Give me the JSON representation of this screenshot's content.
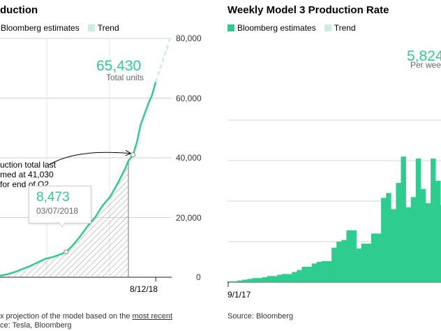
{
  "left_chart": {
    "title": "duction",
    "legend": {
      "estimates_label": "Bloomberg estimates",
      "trend_label": "Trend"
    },
    "highlight": {
      "value": "65,430",
      "caption": "Total units"
    },
    "annotation": {
      "lines": [
        "uction total last",
        "med at 41,030",
        "for end of Q2"
      ]
    },
    "tooltip": {
      "value": "8,473",
      "date": "03/07/2018"
    },
    "footnote": {
      "prefix": "x projection of the model based on the ",
      "link": "most recent"
    },
    "source": "ce: Tesla, Bloomberg"
  },
  "right_chart": {
    "title": "Weekly Model 3 Production Rate",
    "legend": {
      "estimates_label": "Bloomberg estimates",
      "trend_label": "Trend"
    },
    "highlight": {
      "value": "5,824",
      "caption": "Per week"
    },
    "source": "Source: Bloomberg"
  },
  "colors": {
    "accent": "#2ecc8e",
    "trend": "#c8f0dc",
    "hatch": "#9a9a9a"
  },
  "chart_data": [
    {
      "type": "area",
      "title": "duction",
      "ylim": [
        0,
        80000
      ],
      "y_ticks": [
        "80,000",
        "60,000",
        "40,000",
        "20,000",
        "0"
      ],
      "y_tick_values": [
        80000,
        60000,
        40000,
        20000,
        0
      ],
      "x_tick_label": "8/12/18",
      "x_tick_day": 30,
      "x_range": [
        -175,
        50
      ],
      "series": [
        {
          "name": "Bloomberg estimates",
          "x": [
            -175,
            -165,
            -155,
            -145,
            -135,
            -125,
            -115,
            -105,
            -95,
            -88,
            -80,
            -70,
            -60,
            -50,
            -40,
            -30,
            -20,
            -10,
            -6,
            0,
            5,
            10,
            15,
            20,
            25,
            30
          ],
          "y": [
            500,
            1000,
            1800,
            2800,
            3800,
            5000,
            6200,
            6800,
            7700,
            8473,
            10500,
            13500,
            17000,
            20000,
            24000,
            27000,
            31500,
            36500,
            39000,
            41030,
            45000,
            51000,
            54500,
            58000,
            61000,
            65430
          ]
        },
        {
          "name": "Trend",
          "x": [
            30,
            50
          ],
          "y": [
            65430,
            81000
          ]
        }
      ],
      "hatched_to_x": -6
    },
    {
      "type": "bar",
      "title": "Weekly Model 3 Production Rate",
      "x_tick_label": "9/1/17",
      "ylim": [
        0,
        6000
      ],
      "y_gridlines": [
        1000,
        2000,
        3000,
        4000
      ],
      "series": [
        {
          "name": "Bloomberg estimates",
          "values": [
            20,
            20,
            40,
            60,
            80,
            100,
            100,
            120,
            150,
            150,
            180,
            200,
            200,
            250,
            300,
            380,
            380,
            460,
            500,
            520,
            520,
            850,
            1000,
            1040,
            1280,
            1280,
            830,
            950,
            950,
            1200,
            1200,
            2080,
            2200,
            1800,
            2450,
            3100,
            1850,
            2100,
            3050,
            2300,
            1950,
            3050,
            2500,
            1900
          ]
        }
      ]
    }
  ]
}
